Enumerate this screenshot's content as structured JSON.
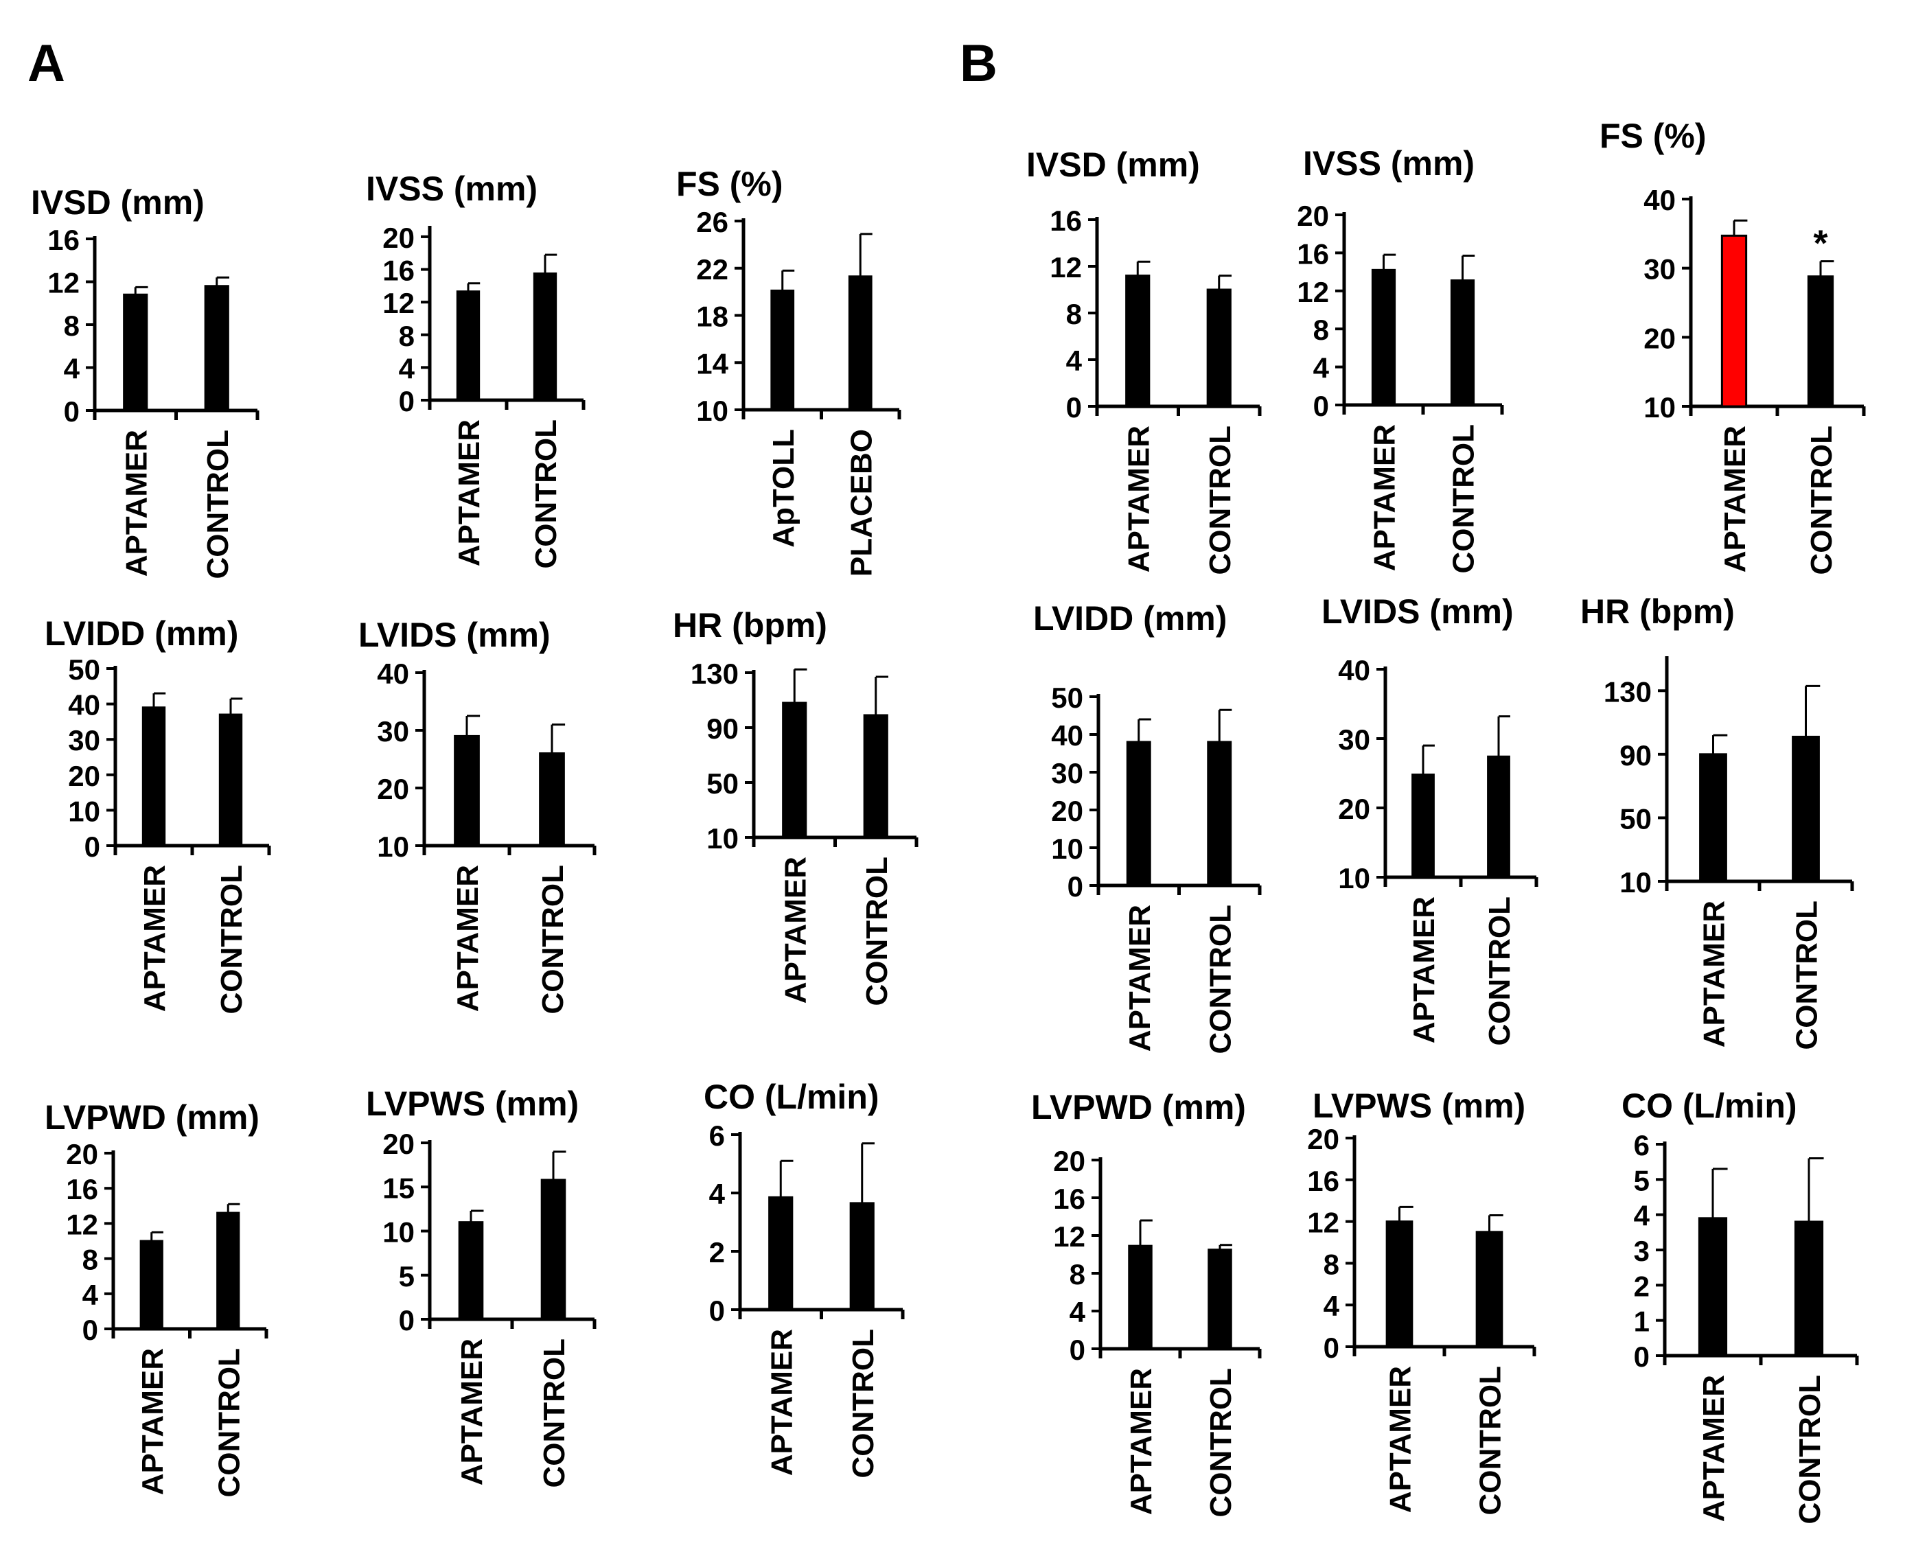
{
  "panels": {
    "a_label": "A",
    "b_label": "B"
  },
  "colors": {
    "bar": "#000000",
    "highlight": "#ff0000",
    "axis": "#000000",
    "error": "#000000"
  },
  "chart_data": [
    {
      "id": "A-IVSD",
      "panel": "A",
      "type": "bar",
      "title": "IVSD (mm)",
      "categories": [
        "APTAMER",
        "CONTROL"
      ],
      "values": [
        10.8,
        11.6
      ],
      "errors": [
        0.7,
        0.8
      ],
      "ylim": [
        0,
        16
      ],
      "yticks": [
        0,
        4,
        8,
        12,
        16
      ]
    },
    {
      "id": "A-IVSS",
      "panel": "A",
      "type": "bar",
      "title": "IVSS (mm)",
      "categories": [
        "APTAMER",
        "CONTROL"
      ],
      "values": [
        13.3,
        15.5
      ],
      "errors": [
        1.0,
        2.3
      ],
      "ylim": [
        0,
        21
      ],
      "yticks": [
        0,
        4,
        8,
        12,
        16,
        20
      ]
    },
    {
      "id": "A-FS",
      "panel": "A",
      "type": "bar",
      "title": "FS (%)",
      "categories": [
        "ApTOLL",
        "PLACEBO"
      ],
      "values": [
        20.1,
        21.3
      ],
      "errors": [
        1.7,
        3.6
      ],
      "ylim": [
        10,
        26
      ],
      "yticks": [
        10,
        14,
        18,
        22,
        26
      ]
    },
    {
      "id": "A-LVIDD",
      "panel": "A",
      "type": "bar",
      "title": "LVIDD (mm)",
      "categories": [
        "APTAMER",
        "CONTROL"
      ],
      "values": [
        39,
        37
      ],
      "errors": [
        4,
        4.5
      ],
      "ylim": [
        0,
        50
      ],
      "yticks": [
        0,
        10,
        20,
        30,
        40,
        50
      ]
    },
    {
      "id": "A-LVIDS",
      "panel": "A",
      "type": "bar",
      "title": "LVIDS (mm)",
      "categories": [
        "APTAMER",
        "CONTROL"
      ],
      "values": [
        29,
        26
      ],
      "errors": [
        3.5,
        5
      ],
      "ylim": [
        10,
        40
      ],
      "yticks": [
        10,
        20,
        30,
        40
      ]
    },
    {
      "id": "A-HR",
      "panel": "A",
      "type": "bar",
      "title": "HR (bpm)",
      "categories": [
        "APTAMER",
        "CONTROL"
      ],
      "values": [
        108,
        99
      ],
      "errors": [
        30,
        28
      ],
      "ylim": [
        10,
        130
      ],
      "yticks": [
        10,
        50,
        90,
        130
      ]
    },
    {
      "id": "A-LVPWD",
      "panel": "A",
      "type": "bar",
      "title": "LVPWD (mm)",
      "categories": [
        "APTAMER",
        "CONTROL"
      ],
      "values": [
        10,
        13.2
      ],
      "errors": [
        1,
        1
      ],
      "ylim": [
        0,
        20
      ],
      "yticks": [
        0,
        4,
        8,
        12,
        16,
        20
      ]
    },
    {
      "id": "A-LVPWS",
      "panel": "A",
      "type": "bar",
      "title": "LVPWS (mm)",
      "categories": [
        "APTAMER",
        "CONTROL"
      ],
      "values": [
        11,
        15.8
      ],
      "errors": [
        1.3,
        3.2
      ],
      "ylim": [
        0,
        20
      ],
      "yticks": [
        0,
        5,
        10,
        15,
        20
      ]
    },
    {
      "id": "A-CO",
      "panel": "A",
      "type": "bar",
      "title": "CO (L/min)",
      "categories": [
        "APTAMER",
        "CONTROL"
      ],
      "values": [
        3.85,
        3.65
      ],
      "errors": [
        1.25,
        2.05
      ],
      "ylim": [
        0,
        6
      ],
      "yticks": [
        0,
        2,
        4,
        6
      ]
    },
    {
      "id": "B-IVSD",
      "panel": "B",
      "type": "bar",
      "title": "IVSD (mm)",
      "categories": [
        "APTAMER",
        "CONTROL"
      ],
      "values": [
        11.2,
        10
      ],
      "errors": [
        1.2,
        1.2
      ],
      "ylim": [
        0,
        16
      ],
      "yticks": [
        0,
        4,
        8,
        12,
        16
      ]
    },
    {
      "id": "B-IVSS",
      "panel": "B",
      "type": "bar",
      "title": "IVSS (mm)",
      "categories": [
        "APTAMER",
        "CONTROL"
      ],
      "values": [
        14.2,
        13.1
      ],
      "errors": [
        1.6,
        2.6
      ],
      "ylim": [
        0,
        20
      ],
      "yticks": [
        0,
        4,
        8,
        12,
        16,
        20
      ]
    },
    {
      "id": "B-FS",
      "panel": "B",
      "type": "bar",
      "title": "FS (%)",
      "categories": [
        "APTAMER",
        "CONTROL"
      ],
      "values": [
        34.7,
        28.8
      ],
      "errors": [
        2.2,
        2.2
      ],
      "ylim": [
        10,
        40
      ],
      "yticks": [
        10,
        20,
        30,
        40
      ],
      "annotation": "*",
      "highlight_index": 0
    },
    {
      "id": "B-LVIDD",
      "panel": "B",
      "type": "bar",
      "title": "LVIDD (mm)",
      "categories": [
        "APTAMER",
        "CONTROL"
      ],
      "values": [
        38,
        38
      ],
      "errors": [
        6,
        8.5
      ],
      "ylim": [
        0,
        50
      ],
      "yticks": [
        0,
        10,
        20,
        30,
        40,
        50
      ]
    },
    {
      "id": "B-LVIDS",
      "panel": "B",
      "type": "bar",
      "title": "LVIDS (mm)",
      "categories": [
        "APTAMER",
        "CONTROL"
      ],
      "values": [
        24.8,
        27.4
      ],
      "errors": [
        4.2,
        5.8
      ],
      "ylim": [
        10,
        40
      ],
      "yticks": [
        10,
        20,
        30,
        40
      ]
    },
    {
      "id": "B-HR",
      "panel": "B",
      "type": "bar",
      "title": "HR (bpm)",
      "categories": [
        "APTAMER",
        "CONTROL"
      ],
      "values": [
        90,
        101
      ],
      "errors": [
        12,
        32
      ],
      "ylim": [
        10,
        150
      ],
      "yticks": [
        10,
        50,
        90,
        130
      ]
    },
    {
      "id": "B-LVPWD",
      "panel": "B",
      "type": "bar",
      "title": "LVPWD (mm)",
      "categories": [
        "APTAMER",
        "CONTROL"
      ],
      "values": [
        10.9,
        10.5
      ],
      "errors": [
        2.7,
        0.5
      ],
      "ylim": [
        0,
        20
      ],
      "yticks": [
        0,
        4,
        8,
        12,
        16,
        20
      ]
    },
    {
      "id": "B-LVPWS",
      "panel": "B",
      "type": "bar",
      "title": "LVPWS (mm)",
      "categories": [
        "APTAMER",
        "CONTROL"
      ],
      "values": [
        12,
        11
      ],
      "errors": [
        1.4,
        1.6
      ],
      "ylim": [
        0,
        20
      ],
      "yticks": [
        0,
        4,
        8,
        12,
        16,
        20
      ]
    },
    {
      "id": "B-CO",
      "panel": "B",
      "type": "bar",
      "title": "CO (L/min)",
      "categories": [
        "APTAMER",
        "CONTROL"
      ],
      "values": [
        3.9,
        3.8
      ],
      "errors": [
        1.4,
        1.8
      ],
      "ylim": [
        0,
        6
      ],
      "yticks": [
        0,
        1,
        2,
        3,
        4,
        5,
        6
      ]
    }
  ]
}
